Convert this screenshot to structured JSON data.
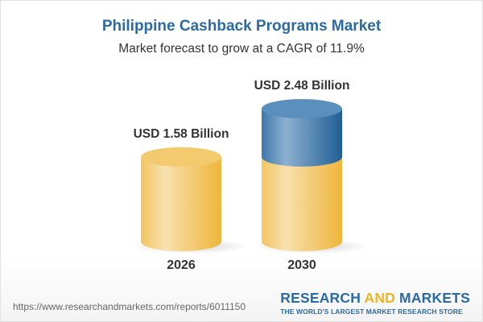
{
  "title": "Philippine Cashback Programs Market",
  "subtitle": "Market forecast to grow at a CAGR of 11.9%",
  "chart_data": {
    "type": "bar",
    "style": "3d-cylinder",
    "categories": [
      "2026",
      "2030"
    ],
    "values": [
      1.58,
      2.48
    ],
    "data_labels": [
      "USD 1.58 Billion",
      "USD 2.48 Billion"
    ],
    "unit": "USD Billion",
    "colors": {
      "base": "#f2c35a",
      "growth": "#3f7fb5"
    }
  },
  "footer": {
    "url": "https://www.researchandmarkets.com/reports/6011150",
    "logo_word1": "RESEARCH ",
    "logo_word2": "AND",
    "logo_word3": " MARKETS",
    "logo_tagline": "THE WORLD'S LARGEST MARKET RESEARCH STORE"
  }
}
